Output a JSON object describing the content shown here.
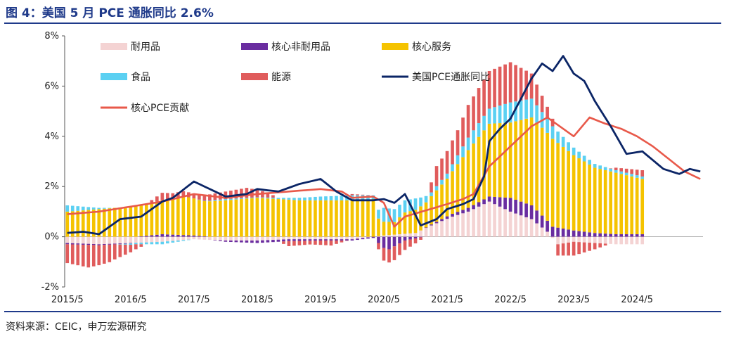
{
  "title": "图 4：美国 5 月 PCE 通胀同比 2.6%",
  "source": "资料来源：CEIC，申万宏源研究",
  "colors": {
    "durable": "#f4d3d3",
    "core_nondurable": "#6a2da0",
    "core_services": "#f5c300",
    "food": "#5bd0f2",
    "energy": "#e05c5c",
    "headline": "#0b2566",
    "core": "#e8594a"
  },
  "chart_data": {
    "type": "bar",
    "title": "美国 5 月 PCE 通胀同比 2.6%",
    "stacked": true,
    "start": "2015/5",
    "x_tick_labels": [
      "2015/5",
      "2016/5",
      "2017/5",
      "2018/5",
      "2019/5",
      "2020/5",
      "2021/5",
      "2022/5",
      "2023/5",
      "2024/5"
    ],
    "y_tick_labels": [
      "8%",
      "6%",
      "4%",
      "2%",
      "0%",
      "-2%"
    ],
    "y_ticks": [
      8,
      6,
      4,
      2,
      0,
      -2
    ],
    "ylim": [
      -2,
      8
    ],
    "xlabel": "",
    "ylabel": "",
    "legend": [
      {
        "name": "耐用品",
        "kind": "bar",
        "color_key": "durable"
      },
      {
        "name": "核心非耐用品",
        "kind": "bar",
        "color_key": "core_nondurable"
      },
      {
        "name": "核心服务",
        "kind": "bar",
        "color_key": "core_services"
      },
      {
        "name": "食品",
        "kind": "bar",
        "color_key": "food"
      },
      {
        "name": "能源",
        "kind": "bar",
        "color_key": "energy"
      },
      {
        "name": "美国PCE通胀同比",
        "kind": "line",
        "color_key": "headline"
      },
      {
        "name": "核心PCE贡献",
        "kind": "line",
        "color_key": "core"
      }
    ],
    "series_keyframes": {
      "durable": [
        [
          0,
          -0.25
        ],
        [
          6,
          -0.3
        ],
        [
          12,
          -0.25
        ],
        [
          18,
          -0.2
        ],
        [
          24,
          -0.1
        ],
        [
          30,
          -0.15
        ],
        [
          36,
          -0.15
        ],
        [
          42,
          -0.1
        ],
        [
          48,
          -0.1
        ],
        [
          54,
          -0.1
        ],
        [
          60,
          0.05
        ],
        [
          66,
          0.15
        ],
        [
          69,
          0.45
        ],
        [
          73,
          0.8
        ],
        [
          76,
          1.0
        ],
        [
          80,
          1.4
        ],
        [
          84,
          1.0
        ],
        [
          88,
          0.7
        ],
        [
          91,
          0.2
        ],
        [
          93,
          -0.3
        ],
        [
          96,
          -0.2
        ],
        [
          104,
          -0.3
        ],
        [
          109,
          -0.3
        ]
      ],
      "core_nondurable": [
        [
          0,
          -0.05
        ],
        [
          12,
          -0.02
        ],
        [
          18,
          0.1
        ],
        [
          24,
          0.05
        ],
        [
          30,
          -0.05
        ],
        [
          36,
          -0.1
        ],
        [
          48,
          -0.05
        ],
        [
          58,
          -0.05
        ],
        [
          60,
          -0.45
        ],
        [
          61,
          -0.5
        ],
        [
          64,
          -0.15
        ],
        [
          68,
          0.02
        ],
        [
          72,
          0.1
        ],
        [
          80,
          0.2
        ],
        [
          84,
          0.55
        ],
        [
          88,
          0.55
        ],
        [
          92,
          0.4
        ],
        [
          96,
          0.25
        ],
        [
          100,
          0.15
        ],
        [
          104,
          0.1
        ],
        [
          109,
          0.1
        ]
      ],
      "core_services": [
        [
          0,
          1.0
        ],
        [
          6,
          1.1
        ],
        [
          12,
          1.2
        ],
        [
          18,
          1.35
        ],
        [
          22,
          1.55
        ],
        [
          26,
          1.4
        ],
        [
          30,
          1.45
        ],
        [
          36,
          1.55
        ],
        [
          40,
          1.5
        ],
        [
          44,
          1.45
        ],
        [
          48,
          1.45
        ],
        [
          54,
          1.45
        ],
        [
          58,
          1.5
        ],
        [
          59,
          0.7
        ],
        [
          60,
          0.55
        ],
        [
          62,
          0.5
        ],
        [
          64,
          0.85
        ],
        [
          68,
          1.0
        ],
        [
          72,
          1.5
        ],
        [
          76,
          2.3
        ],
        [
          80,
          2.9
        ],
        [
          84,
          3.0
        ],
        [
          88,
          3.5
        ],
        [
          92,
          3.5
        ],
        [
          96,
          3.0
        ],
        [
          100,
          2.6
        ],
        [
          104,
          2.45
        ],
        [
          109,
          2.2
        ]
      ],
      "food": [
        [
          0,
          0.25
        ],
        [
          6,
          0.05
        ],
        [
          12,
          -0.05
        ],
        [
          18,
          -0.1
        ],
        [
          24,
          0.0
        ],
        [
          30,
          0.05
        ],
        [
          36,
          0.02
        ],
        [
          40,
          0.05
        ],
        [
          44,
          0.1
        ],
        [
          48,
          0.15
        ],
        [
          54,
          0.2
        ],
        [
          58,
          0.15
        ],
        [
          60,
          0.55
        ],
        [
          63,
          0.5
        ],
        [
          66,
          0.45
        ],
        [
          69,
          0.15
        ],
        [
          72,
          0.2
        ],
        [
          76,
          0.5
        ],
        [
          80,
          0.6
        ],
        [
          84,
          0.8
        ],
        [
          88,
          0.75
        ],
        [
          92,
          0.5
        ],
        [
          96,
          0.3
        ],
        [
          100,
          0.15
        ],
        [
          104,
          0.1
        ],
        [
          109,
          0.1
        ]
      ],
      "energy": [
        [
          0,
          -0.75
        ],
        [
          4,
          -0.9
        ],
        [
          8,
          -0.7
        ],
        [
          12,
          -0.3
        ],
        [
          16,
          0.1
        ],
        [
          18,
          0.3
        ],
        [
          20,
          0.2
        ],
        [
          24,
          0.2
        ],
        [
          30,
          0.3
        ],
        [
          34,
          0.4
        ],
        [
          38,
          0.2
        ],
        [
          40,
          0.0
        ],
        [
          42,
          -0.2
        ],
        [
          46,
          -0.15
        ],
        [
          50,
          -0.2
        ],
        [
          54,
          0.05
        ],
        [
          58,
          0.0
        ],
        [
          60,
          -0.5
        ],
        [
          62,
          -0.55
        ],
        [
          66,
          -0.2
        ],
        [
          68,
          0.0
        ],
        [
          70,
          0.8
        ],
        [
          72,
          0.9
        ],
        [
          74,
          1.0
        ],
        [
          76,
          1.3
        ],
        [
          80,
          1.5
        ],
        [
          84,
          1.6
        ],
        [
          88,
          1.0
        ],
        [
          92,
          0.3
        ],
        [
          93,
          -0.45
        ],
        [
          96,
          -0.55
        ],
        [
          100,
          -0.25
        ],
        [
          104,
          0.1
        ],
        [
          109,
          0.25
        ]
      ],
      "headline": [
        [
          0,
          0.15
        ],
        [
          3,
          0.2
        ],
        [
          6,
          0.1
        ],
        [
          10,
          0.7
        ],
        [
          14,
          0.8
        ],
        [
          18,
          1.4
        ],
        [
          20,
          1.55
        ],
        [
          24,
          2.2
        ],
        [
          27,
          1.9
        ],
        [
          30,
          1.6
        ],
        [
          34,
          1.7
        ],
        [
          36,
          1.9
        ],
        [
          40,
          1.8
        ],
        [
          44,
          2.1
        ],
        [
          48,
          2.3
        ],
        [
          51,
          1.8
        ],
        [
          54,
          1.45
        ],
        [
          58,
          1.45
        ],
        [
          60,
          1.5
        ],
        [
          62,
          1.35
        ],
        [
          64,
          1.7
        ],
        [
          67,
          0.45
        ],
        [
          70,
          0.7
        ],
        [
          72,
          1.1
        ],
        [
          75,
          1.3
        ],
        [
          77,
          1.5
        ],
        [
          79,
          2.4
        ],
        [
          80,
          3.8
        ],
        [
          82,
          4.3
        ],
        [
          84,
          4.7
        ],
        [
          86,
          5.5
        ],
        [
          88,
          6.3
        ],
        [
          90,
          6.9
        ],
        [
          92,
          6.6
        ],
        [
          94,
          7.2
        ],
        [
          96,
          6.5
        ],
        [
          98,
          6.2
        ],
        [
          100,
          5.4
        ],
        [
          103,
          4.4
        ],
        [
          106,
          3.3
        ],
        [
          109,
          3.4
        ],
        [
          113,
          2.7
        ],
        [
          116,
          2.5
        ],
        [
          118,
          2.7
        ],
        [
          120,
          2.6
        ]
      ],
      "core": [
        [
          0,
          0.9
        ],
        [
          6,
          1.0
        ],
        [
          12,
          1.2
        ],
        [
          18,
          1.4
        ],
        [
          24,
          1.7
        ],
        [
          30,
          1.55
        ],
        [
          36,
          1.7
        ],
        [
          42,
          1.8
        ],
        [
          48,
          1.9
        ],
        [
          52,
          1.8
        ],
        [
          54,
          1.55
        ],
        [
          58,
          1.6
        ],
        [
          60,
          1.35
        ],
        [
          62,
          0.4
        ],
        [
          64,
          0.8
        ],
        [
          68,
          1.05
        ],
        [
          72,
          1.3
        ],
        [
          75,
          1.5
        ],
        [
          77,
          1.7
        ],
        [
          80,
          2.8
        ],
        [
          84,
          3.6
        ],
        [
          88,
          4.4
        ],
        [
          91,
          4.75
        ],
        [
          94,
          4.3
        ],
        [
          96,
          4.0
        ],
        [
          99,
          4.75
        ],
        [
          102,
          4.5
        ],
        [
          105,
          4.3
        ],
        [
          108,
          4.0
        ],
        [
          111,
          3.6
        ],
        [
          114,
          3.1
        ],
        [
          117,
          2.6
        ],
        [
          120,
          2.3
        ]
      ]
    }
  }
}
